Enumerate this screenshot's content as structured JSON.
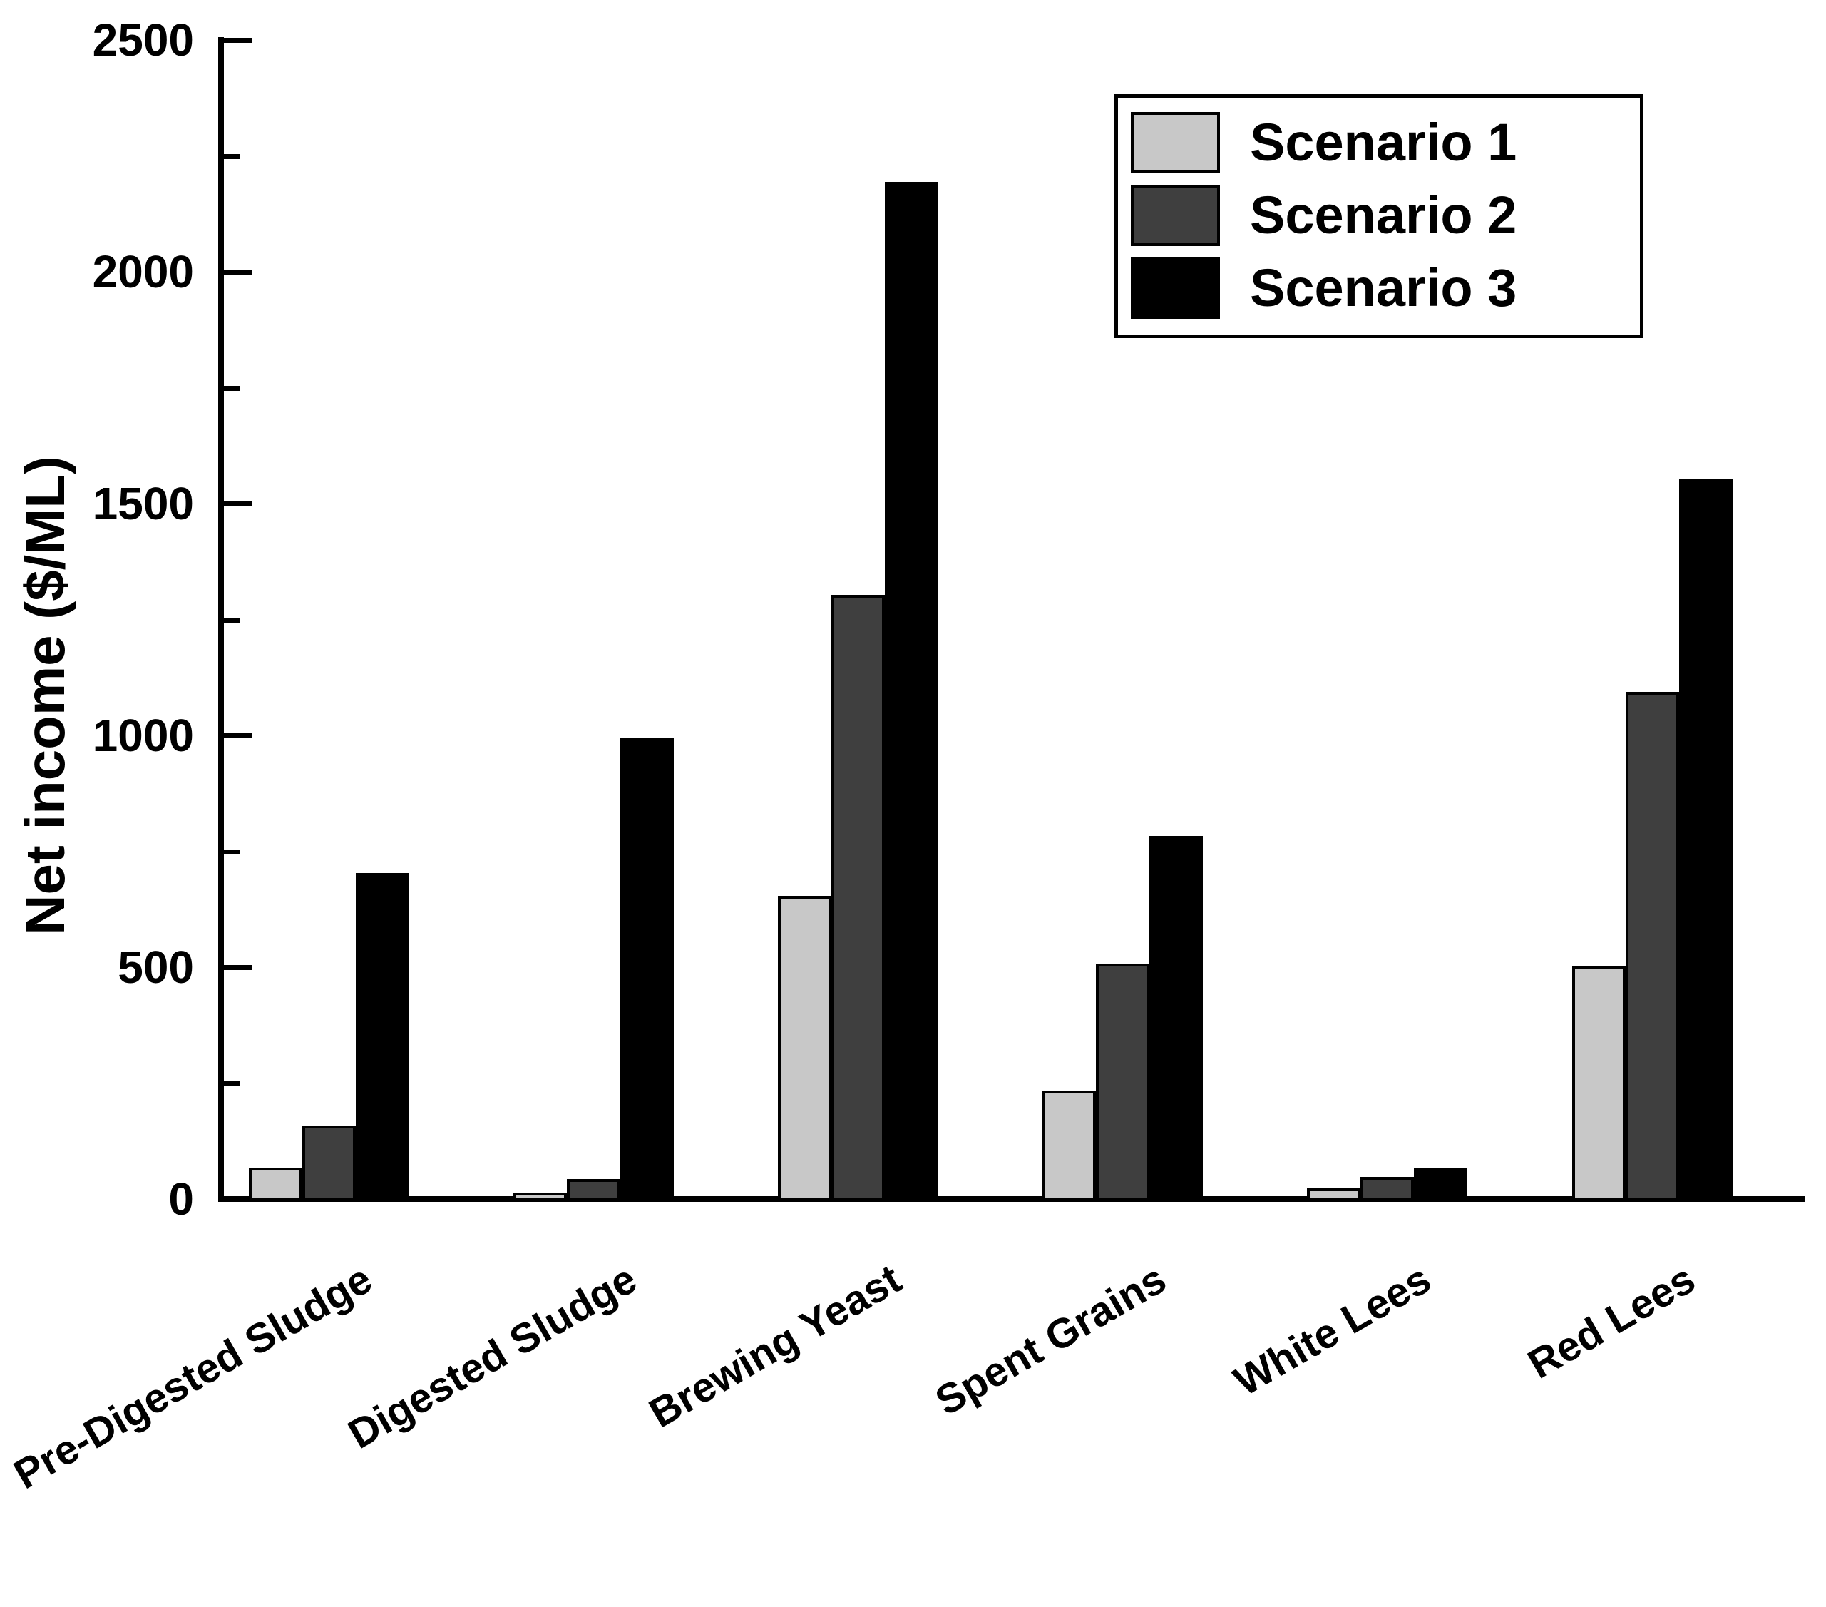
{
  "figure": {
    "background_color": "#ffffff",
    "axis_color": "#000000",
    "text_color": "#000000"
  },
  "chart_data": {
    "type": "bar",
    "title": "",
    "xlabel": "",
    "ylabel": "Net income ($/ML)",
    "ylim": [
      0,
      2500
    ],
    "y_major_ticks": [
      0,
      500,
      1000,
      1500,
      2000,
      2500
    ],
    "y_tick_labels": [
      "0",
      "500",
      "1000",
      "1500",
      "2000",
      "2500"
    ],
    "y_minor_tick_interval": 250,
    "grid": false,
    "legend_position": "top-right",
    "categories": [
      "Pre-Digested Sludge",
      "Digested Sludge",
      "Brewing Yeast",
      "Spent Grains",
      "White Lees",
      "Red Lees"
    ],
    "series": [
      {
        "name": "Scenario 1",
        "color": "#c8c8c8",
        "values": [
          65,
          10,
          650,
          230,
          20,
          500
        ]
      },
      {
        "name": "Scenario 2",
        "color": "#3f3f3f",
        "values": [
          155,
          40,
          1300,
          505,
          45,
          1090
        ]
      },
      {
        "name": "Scenario 3",
        "color": "#000000",
        "values": [
          700,
          990,
          2190,
          780,
          65,
          1550
        ]
      }
    ]
  }
}
